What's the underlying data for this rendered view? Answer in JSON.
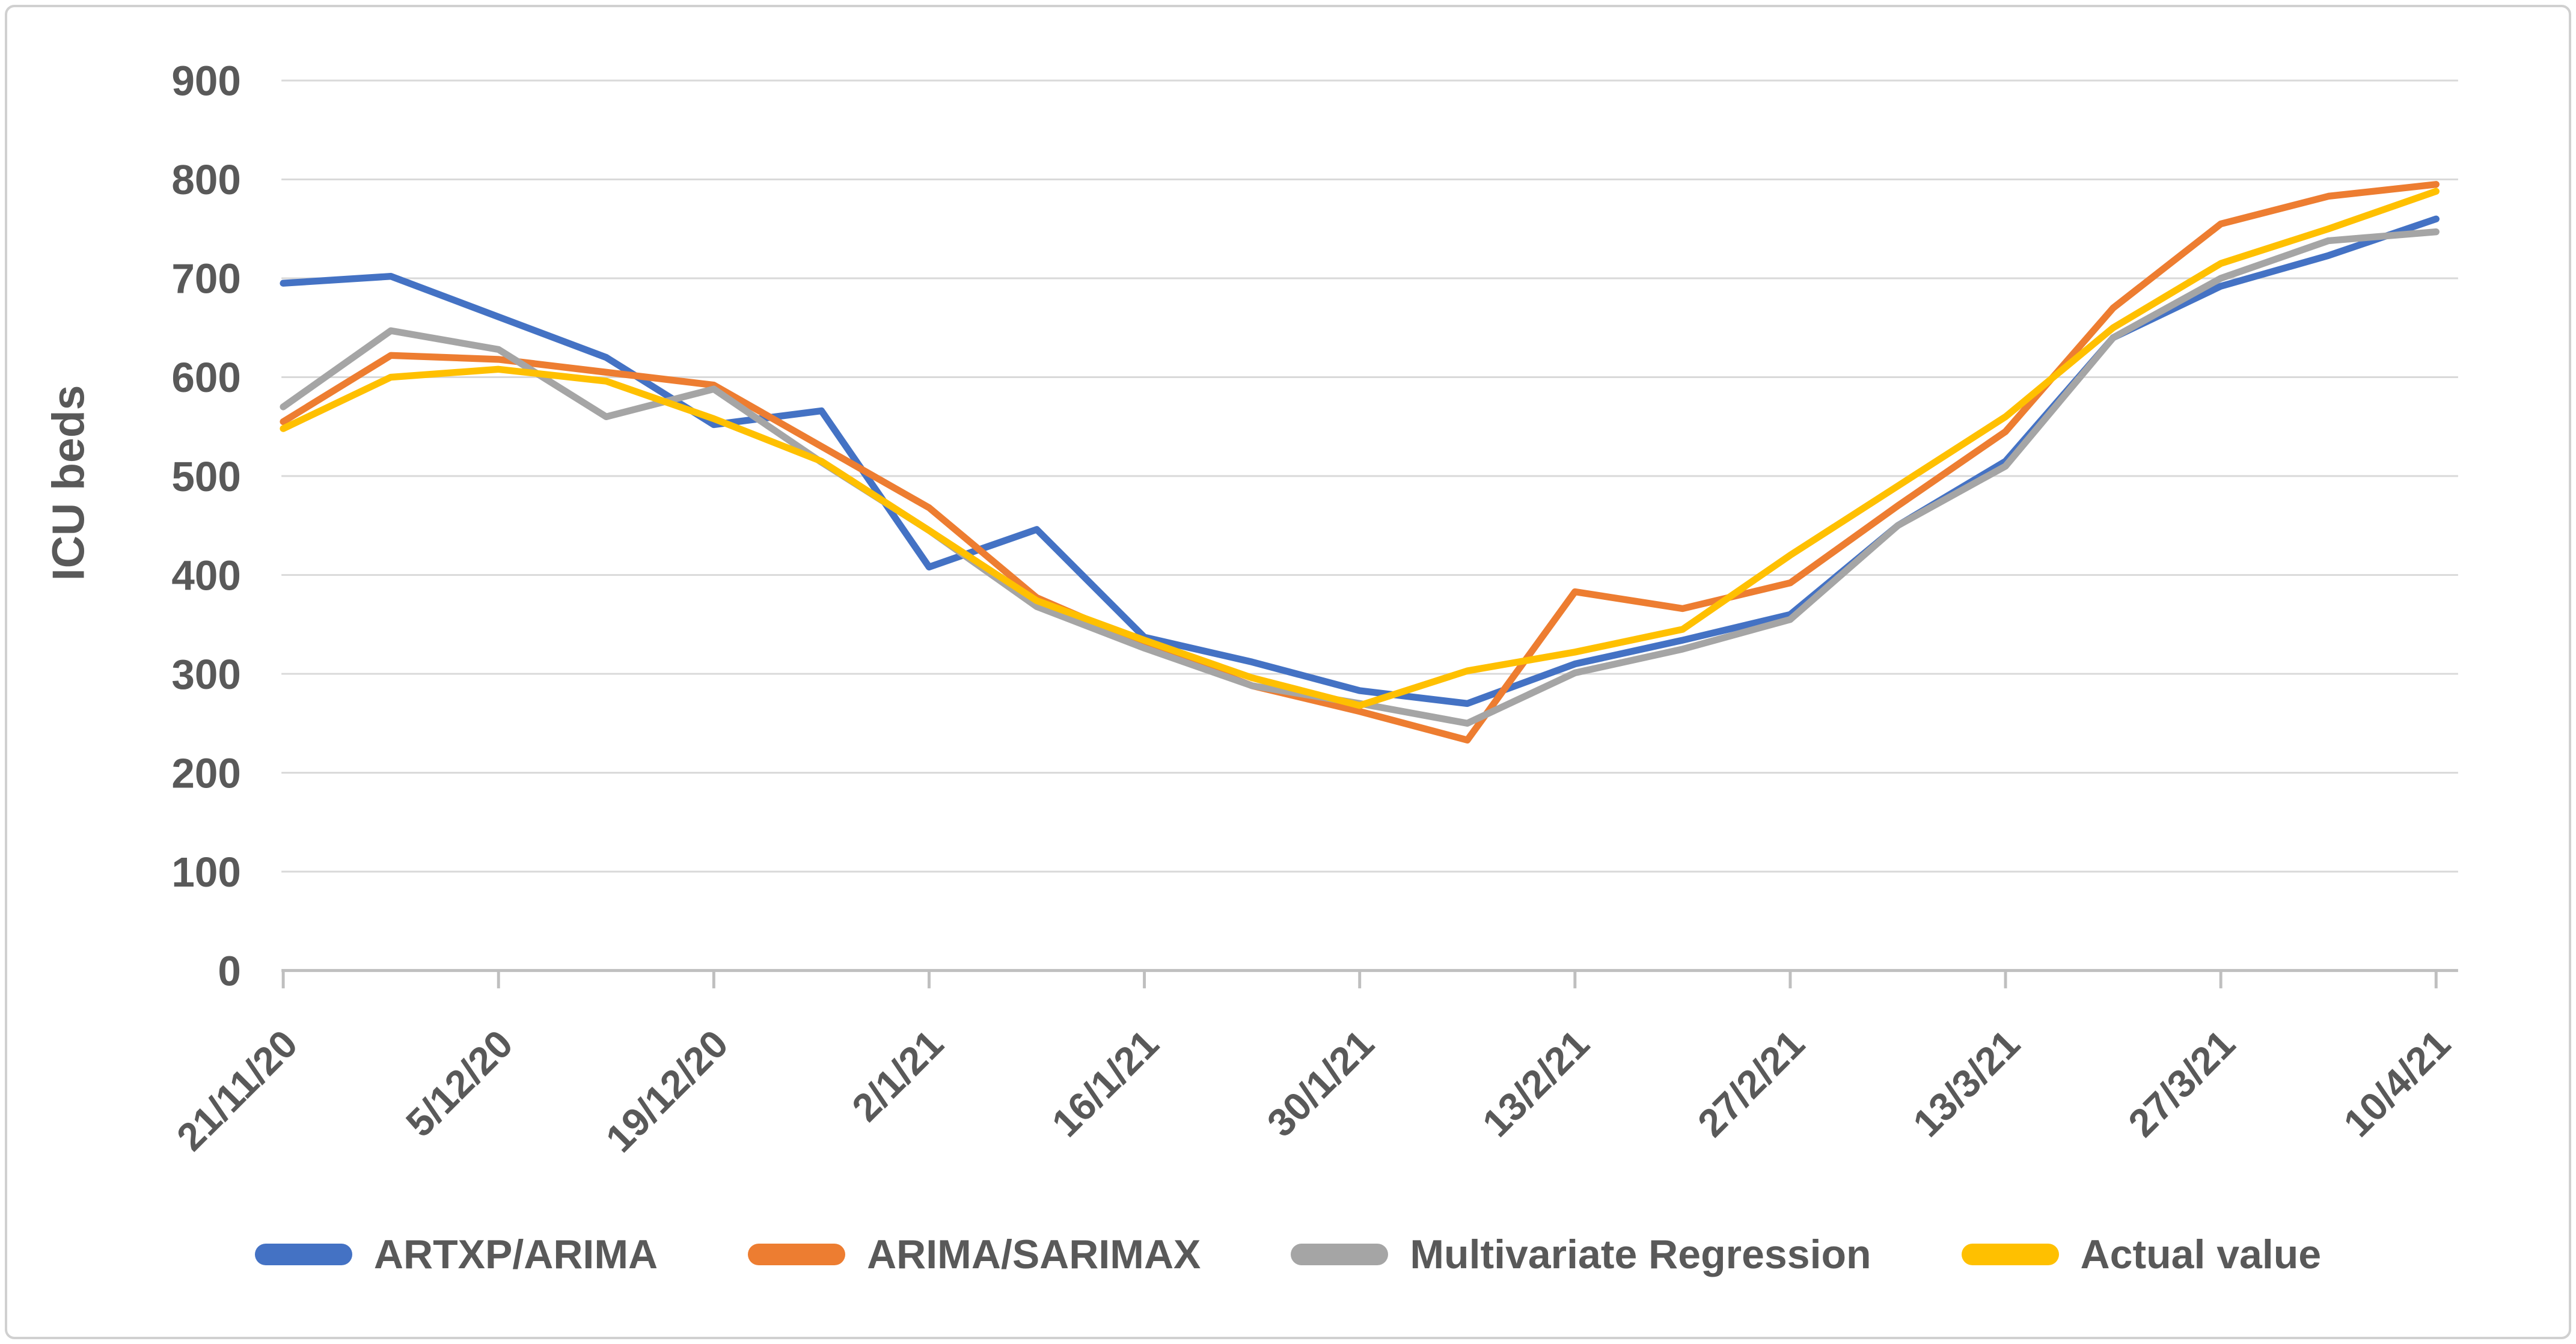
{
  "chart_data": {
    "type": "line",
    "title": "",
    "xlabel": "",
    "ylabel": "ICU beds",
    "ylim": [
      0,
      900
    ],
    "y_ticks": [
      0,
      100,
      200,
      300,
      400,
      500,
      600,
      700,
      800,
      900
    ],
    "grid": true,
    "legend_position": "bottom",
    "x_tick_labels": [
      "21/11/20",
      "5/12/20",
      "19/12/20",
      "2/1/21",
      "16/1/21",
      "30/1/21",
      "13/2/21",
      "27/2/21",
      "13/3/21",
      "27/3/21",
      "10/4/21"
    ],
    "weeks_per_label": 2,
    "n_points": 21,
    "series": [
      {
        "name": "ARTXP/ARIMA",
        "color": "#4472C4",
        "values": [
          695,
          702,
          661,
          620,
          552,
          566,
          408,
          446,
          337,
          312,
          283,
          270,
          310,
          334,
          360,
          450,
          515,
          640,
          692,
          723,
          760
        ]
      },
      {
        "name": "ARIMA/SARIMAX",
        "color": "#ED7D31",
        "values": [
          555,
          622,
          618,
          605,
          592,
          530,
          468,
          377,
          330,
          288,
          262,
          233,
          383,
          366,
          392,
          470,
          545,
          670,
          755,
          783,
          795
        ]
      },
      {
        "name": "Multivariate Regression",
        "color": "#A5A5A5",
        "values": [
          570,
          647,
          628,
          560,
          588,
          514,
          445,
          368,
          326,
          288,
          270,
          250,
          301,
          325,
          355,
          450,
          510,
          640,
          700,
          738,
          747
        ]
      },
      {
        "name": "Actual value",
        "color": "#FFC000",
        "values": [
          548,
          600,
          608,
          596,
          558,
          515,
          445,
          374,
          334,
          296,
          268,
          303,
          322,
          345,
          420,
          490,
          560,
          650,
          715,
          750,
          788
        ]
      }
    ]
  },
  "style": {
    "grid_color": "#D9D9D9",
    "axis_line_color": "#BFBFBF",
    "label_color": "#595959",
    "background": "#FFFFFF",
    "border_color": "#D0D0D0"
  }
}
